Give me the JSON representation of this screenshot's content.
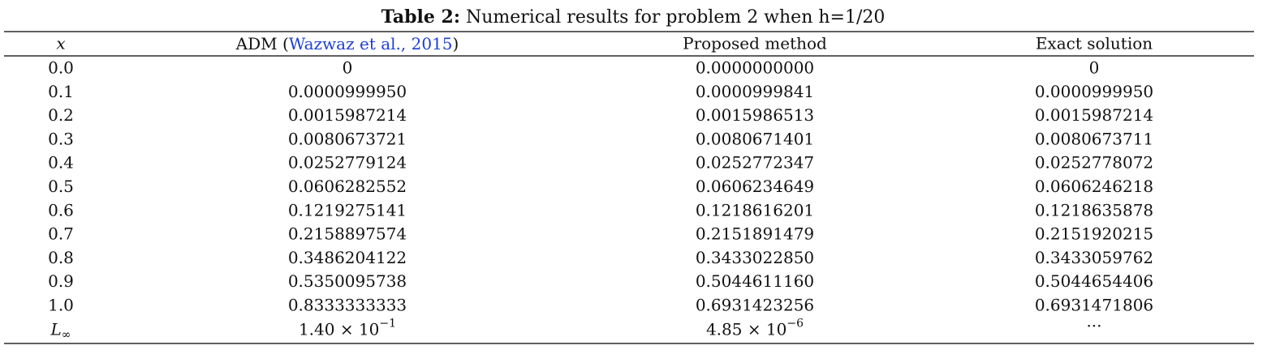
{
  "title": {
    "label": "Table 2:",
    "text": "Numerical results for problem 2 when h=1/20"
  },
  "table": {
    "header": [
      "x",
      {
        "before": "ADM (",
        "link": "Wazwaz et al., 2015",
        "after": ")"
      },
      "Proposed method",
      "Exact solution"
    ],
    "rows": [
      [
        "0.0",
        "0",
        "0.0000000000",
        "0"
      ],
      [
        "0.1",
        "0.0000999950",
        "0.0000999841",
        "0.0000999950"
      ],
      [
        "0.2",
        "0.0015987214",
        "0.0015986513",
        "0.0015987214"
      ],
      [
        "0.3",
        "0.0080673721",
        "0.0080671401",
        "0.0080673711"
      ],
      [
        "0.4",
        "0.0252779124",
        "0.0252772347",
        "0.0252778072"
      ],
      [
        "0.5",
        "0.0606282552",
        "0.0606234649",
        "0.0606246218"
      ],
      [
        "0.6",
        "0.1219275141",
        "0.1218616201",
        "0.1218635878"
      ],
      [
        "0.7",
        "0.2158897574",
        "0.2151891479",
        "0.2151920215"
      ],
      [
        "0.8",
        "0.3486204122",
        "0.3433022850",
        "0.3433059762"
      ],
      [
        "0.9",
        "0.5350095738",
        "0.5044611160",
        "0.5044654406"
      ],
      [
        "1.0",
        "0.8333333333",
        "0.6931423256",
        "0.6931471806"
      ]
    ],
    "footer": {
      "label": {
        "base": "L",
        "sub": "∞"
      },
      "cells": [
        {
          "mantissa": "1.40 × 10",
          "exponent": "−1"
        },
        {
          "mantissa": "4.85 × 10",
          "exponent": "−6"
        },
        "···"
      ]
    }
  }
}
